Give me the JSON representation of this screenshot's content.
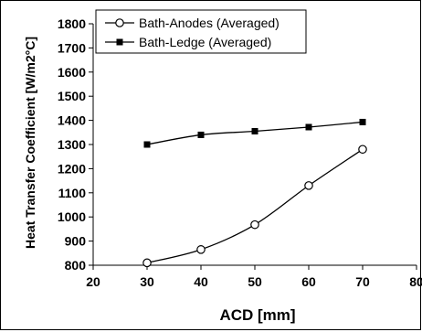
{
  "chart_data": {
    "type": "line",
    "title": "",
    "xlabel": "ACD [mm]",
    "ylabel": "Heat Transfer Coefficient [W/m2°C]",
    "xlim": [
      20,
      80
    ],
    "ylim": [
      800,
      1800
    ],
    "xticks": [
      20,
      30,
      40,
      50,
      60,
      70,
      80
    ],
    "yticks": [
      800,
      900,
      1000,
      1100,
      1200,
      1300,
      1400,
      1500,
      1600,
      1700,
      1800
    ],
    "grid": false,
    "legend_position": "top-left",
    "series": [
      {
        "name": "Bath-Anodes (Averaged)",
        "marker": "open-circle",
        "color": "#000000",
        "x": [
          30,
          40,
          50,
          60,
          70
        ],
        "y": [
          810,
          865,
          968,
          1130,
          1280
        ]
      },
      {
        "name": "Bath-Ledge (Averaged)",
        "marker": "filled-square",
        "color": "#000000",
        "x": [
          30,
          40,
          50,
          60,
          70
        ],
        "y": [
          1300,
          1340,
          1355,
          1372,
          1393
        ]
      }
    ]
  }
}
